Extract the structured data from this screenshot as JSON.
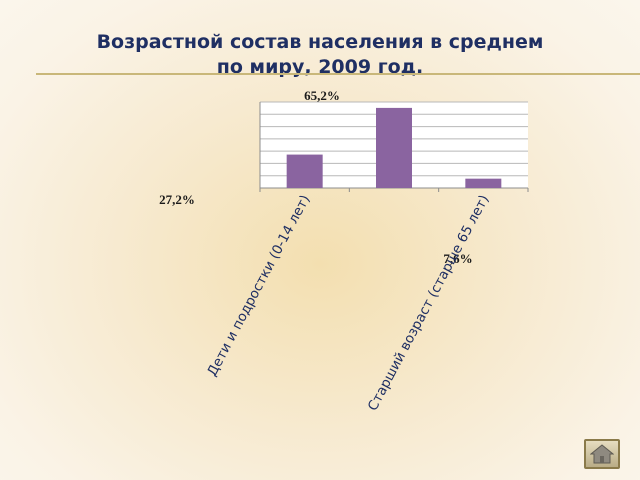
{
  "slide": {
    "title_line1": "Возрастной состав населения в среднем",
    "title_line2": "по миру, 2009 год."
  },
  "chart_data": {
    "type": "bar",
    "categories": [
      "Дети и подростки (0-14 лет)",
      "",
      "Старший возраст (старше 65 лет)"
    ],
    "values": [
      27.2,
      65.2,
      7.6
    ],
    "data_labels": [
      "27,2%",
      "65,2%",
      "7,6%"
    ],
    "ylim": [
      0,
      70
    ],
    "grid": true,
    "series": [
      {
        "values": [
          27.2,
          65.2,
          7.6
        ],
        "color": "#8a64a0"
      }
    ]
  },
  "nav": {
    "home_icon": "home-icon"
  }
}
